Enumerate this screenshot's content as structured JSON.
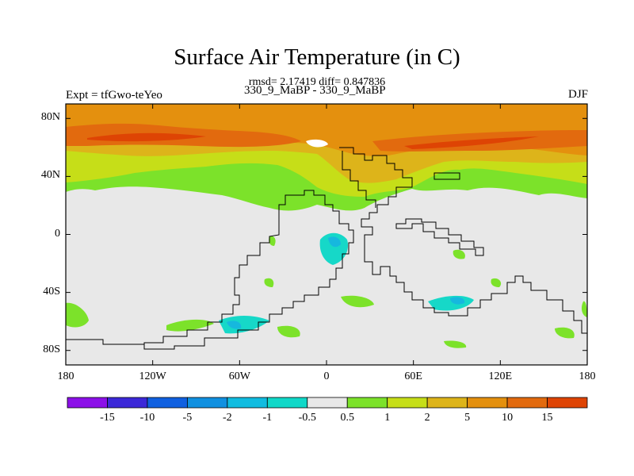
{
  "title": "Surface Air Temperature (in C)",
  "subtitle": "rmsd= 2.17419 diff= 0.847836",
  "left_label": "Expt = tfGwo-teYeo",
  "center_label": "330_9_MaBP - 330_9_MaBP",
  "right_label": "DJF",
  "colors": {
    "neutral": "#e8e8e8",
    "c_0_5_1": "#7ce22a",
    "c_1_2": "#c6de18",
    "c_2_5": "#ddb41a",
    "c_5_10": "#e4900e",
    "c_10_15": "#e26a0e",
    "c_15_plus": "#de4404",
    "cool_1": "#16d8c8",
    "cool_2": "#16b8de"
  },
  "chart_data": {
    "type": "heatmap",
    "projection": "cylindrical equidistant",
    "xlim": [
      -180,
      180
    ],
    "ylim": [
      -90,
      90
    ],
    "x_ticks": [
      {
        "value": -180,
        "label": "180"
      },
      {
        "value": -120,
        "label": "120W"
      },
      {
        "value": -60,
        "label": "60W"
      },
      {
        "value": 0,
        "label": "0"
      },
      {
        "value": 60,
        "label": "60E"
      },
      {
        "value": 120,
        "label": "120E"
      },
      {
        "value": 180,
        "label": "180"
      }
    ],
    "y_ticks": [
      {
        "value": 80,
        "label": "80N"
      },
      {
        "value": 40,
        "label": "40N"
      },
      {
        "value": 0,
        "label": "0"
      },
      {
        "value": -40,
        "label": "40S"
      },
      {
        "value": -80,
        "label": "80S"
      }
    ],
    "colorbar": {
      "labels": [
        "-15",
        "-10",
        "-5",
        "-2",
        "-1",
        "-0.5",
        "0.5",
        "1",
        "2",
        "5",
        "10",
        "15"
      ],
      "colors": [
        "#8c10e8",
        "#3c28d8",
        "#1060e0",
        "#1090e0",
        "#10bce0",
        "#10d8c8",
        "#e8e8e8",
        "#7ce22a",
        "#c6de18",
        "#ddb41a",
        "#e4900e",
        "#e26a0e",
        "#de4404"
      ]
    }
  }
}
